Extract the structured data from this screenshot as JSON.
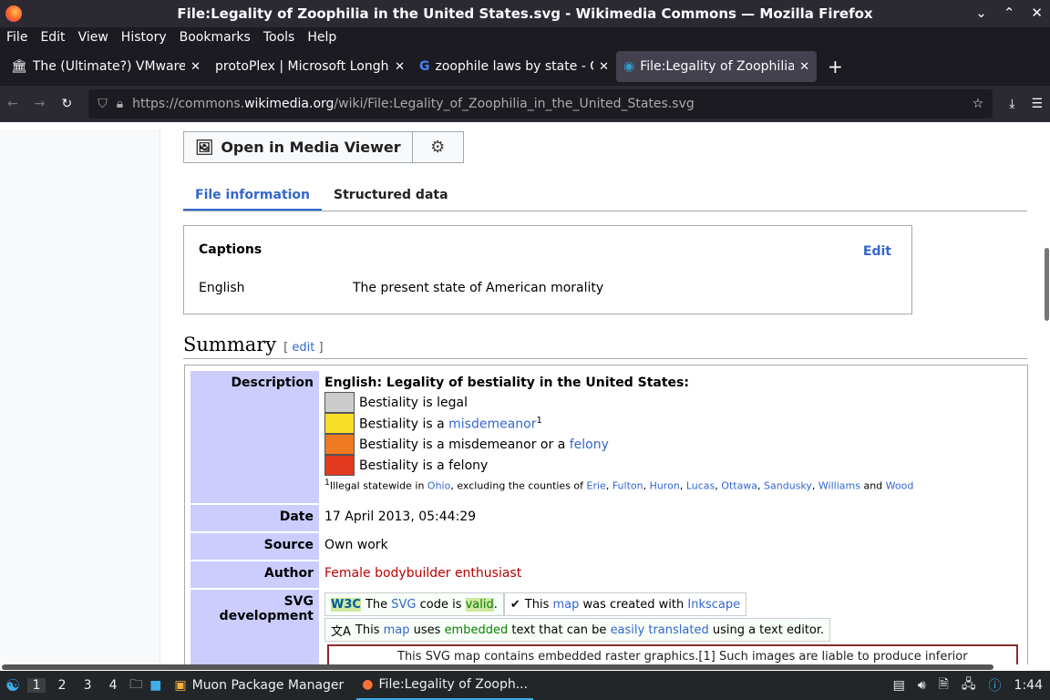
{
  "window": {
    "title": "File:Legality of Zoophilia in the United States.svg - Wikimedia Commons — Mozilla Firefox"
  },
  "menu": [
    "File",
    "Edit",
    "View",
    "History",
    "Bookmarks",
    "Tools",
    "Help"
  ],
  "tabs": [
    {
      "label": "The (Ultimate?) VMware I",
      "icon": "wikipedia-icon"
    },
    {
      "label": "protoPlex | Microsoft Longho",
      "icon": "none"
    },
    {
      "label": "zoophile laws by state - G",
      "icon": "google-icon"
    },
    {
      "label": "File:Legality of Zoophilia",
      "icon": "commons-icon",
      "active": true
    }
  ],
  "url": {
    "prefix": "https://commons.",
    "domain": "wikimedia.org",
    "path": "/wiki/File:Legality_of_Zoophilia_in_the_United_States.svg"
  },
  "page": {
    "media_viewer": "Open in Media Viewer",
    "tabs": [
      "File information",
      "Structured data"
    ],
    "captions": {
      "heading": "Captions",
      "edit": "Edit",
      "language": "English",
      "text": "The present state of American morality"
    },
    "summary": {
      "heading": "Summary",
      "edit": "edit"
    },
    "description": {
      "label": "Description",
      "title": "English: Legality of bestiality in the United States:",
      "legend": [
        {
          "color": "#cccccc",
          "pre": "Bestiality is legal",
          "link": "",
          "post": ""
        },
        {
          "color": "#f7dd26",
          "pre": "Bestiality is a ",
          "link": "misdemeanor",
          "post": "1"
        },
        {
          "color": "#ee7a21",
          "pre": "Bestiality is a misdemeanor or a ",
          "link": "felony",
          "post": ""
        },
        {
          "color": "#e2391f",
          "pre": "Bestiality is a felony",
          "link": "",
          "post": ""
        }
      ],
      "footnote": {
        "mark": "1",
        "pre": "Illegal statewide in ",
        "ohio": "Ohio",
        "mid": ", excluding the counties of ",
        "counties": [
          "Erie",
          "Fulton",
          "Huron",
          "Lucas",
          "Ottawa",
          "Sandusky",
          "Williams"
        ],
        "and": " and ",
        "last": "Wood"
      }
    },
    "date": {
      "label": "Date",
      "value": "17 April 2013, 05:44:29"
    },
    "source": {
      "label": "Source",
      "value": "Own work"
    },
    "author": {
      "label": "Author",
      "value": "Female bodybuilder enthusiast"
    },
    "svg": {
      "label": "SVG development",
      "w3c": {
        "a": "The ",
        "b": "SVG",
        "c": " code is ",
        "d": "valid",
        "e": "."
      },
      "inkscape": {
        "a": "This ",
        "b": "map",
        "c": " was created with ",
        "d": "Inkscape"
      },
      "translate": {
        "a": "This ",
        "b": "map",
        "c": " uses ",
        "d": "embedded",
        "e": " text that can be ",
        "f": "easily translated",
        "g": " using a text editor."
      },
      "warning": "This SVG map contains embedded raster graphics.[1] Such images are liable to produce inferior"
    }
  },
  "taskbar": {
    "desktops": [
      "1",
      "2",
      "3",
      "4"
    ],
    "apps": [
      "Muon Package Manager",
      "File:Legality of Zooph..."
    ],
    "clock": "1:44"
  }
}
